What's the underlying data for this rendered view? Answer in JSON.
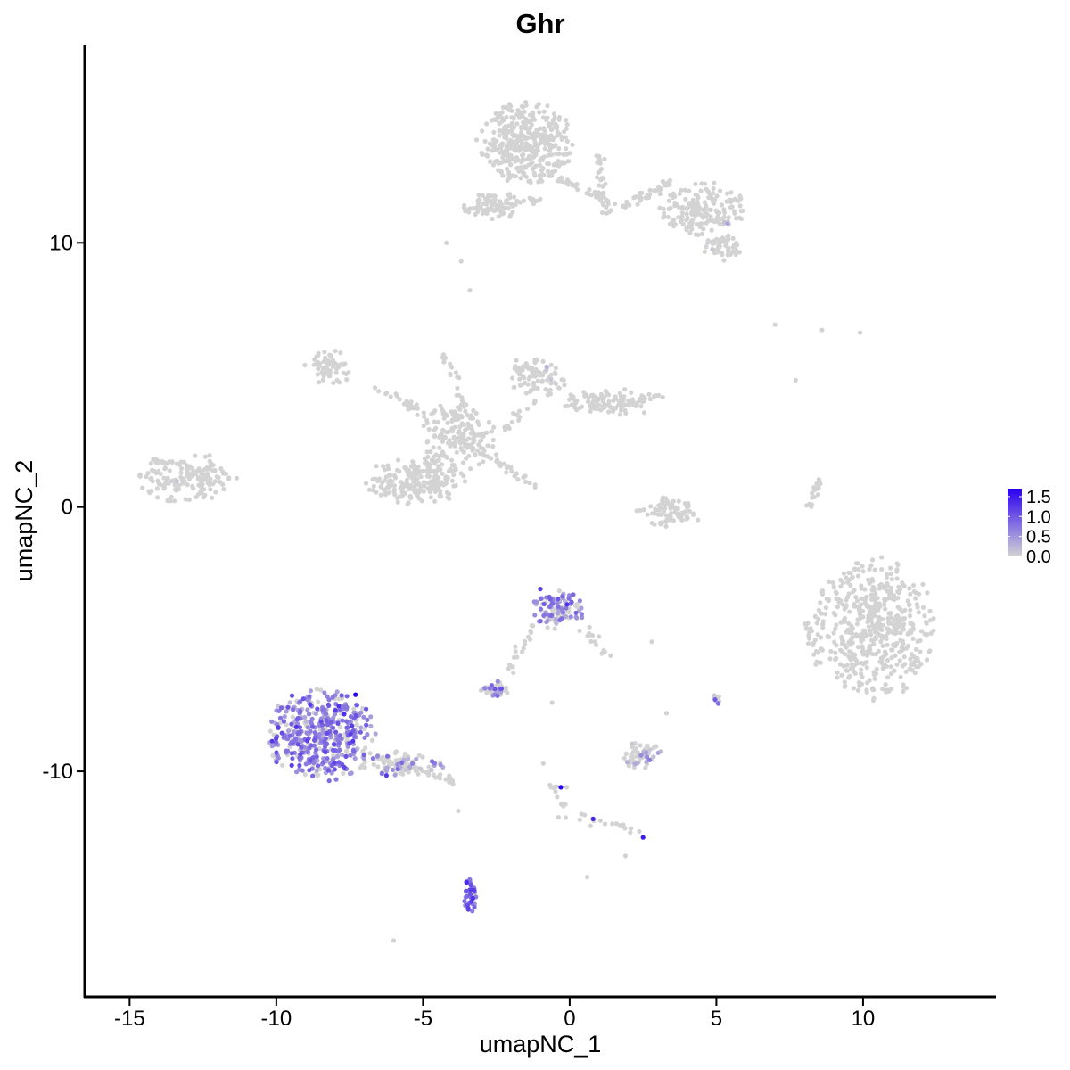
{
  "chart_data": {
    "type": "scatter",
    "title": "Ghr",
    "xlabel": "umapNC_1",
    "ylabel": "umapNC_2",
    "xlim": [
      -16.5,
      14.5
    ],
    "ylim": [
      -18.5,
      17.5
    ],
    "xticks": [
      -15,
      -10,
      -5,
      0,
      5,
      10
    ],
    "yticks": [
      -10,
      0,
      10
    ],
    "xtick_labels": [
      "-15",
      "-10",
      "-5",
      "0",
      "5",
      "10"
    ],
    "ytick_labels": [
      "-10",
      "0",
      "10"
    ],
    "grid": false,
    "point_color_low": "#d3d3d3",
    "point_color_high": "#2a00f0",
    "color_scale": {
      "min": 0.0,
      "max": 1.7,
      "ticks": [
        0.0,
        0.5,
        1.0,
        1.5
      ],
      "tick_labels": [
        "0.0",
        "0.5",
        "1.0",
        "1.5"
      ],
      "placement": "right"
    },
    "clusters": [
      {
        "cx": -1.5,
        "cy": 13.8,
        "rx": 1.6,
        "ry": 1.5,
        "n": 380,
        "expr": 0.0,
        "frac": 0.0
      },
      {
        "cx": 4.5,
        "cy": 11.3,
        "rx": 1.4,
        "ry": 1.0,
        "n": 180,
        "expr": 0.0,
        "frac": 0.02
      },
      {
        "cx": 5.2,
        "cy": 9.8,
        "rx": 0.6,
        "ry": 0.5,
        "n": 50,
        "expr": 0.0,
        "frac": 0.04
      },
      {
        "cx": -2.6,
        "cy": 11.4,
        "rx": 1.1,
        "ry": 0.5,
        "n": 90,
        "expr": 0.0,
        "frac": 0.0
      },
      {
        "cx": -8.2,
        "cy": 5.3,
        "rx": 0.9,
        "ry": 0.6,
        "n": 60,
        "expr": 0.0,
        "frac": 0.03
      },
      {
        "cx": -3.8,
        "cy": 2.7,
        "rx": 1.2,
        "ry": 1.3,
        "n": 160,
        "expr": 0.0,
        "frac": 0.0
      },
      {
        "cx": -5.2,
        "cy": 1.0,
        "rx": 1.7,
        "ry": 0.9,
        "n": 220,
        "expr": 0.0,
        "frac": 0.0
      },
      {
        "cx": -1.2,
        "cy": 5.0,
        "rx": 1.0,
        "ry": 0.7,
        "n": 80,
        "expr": 0.0,
        "frac": 0.02
      },
      {
        "cx": 1.5,
        "cy": 4.0,
        "rx": 1.7,
        "ry": 0.5,
        "n": 110,
        "expr": 0.0,
        "frac": 0.0
      },
      {
        "cx": -13.0,
        "cy": 1.1,
        "rx": 1.7,
        "ry": 0.9,
        "n": 170,
        "expr": 0.0,
        "frac": 0.02
      },
      {
        "cx": 3.4,
        "cy": -0.2,
        "rx": 1.1,
        "ry": 0.6,
        "n": 80,
        "expr": 0.0,
        "frac": 0.0
      },
      {
        "cx": 10.4,
        "cy": -4.6,
        "rx": 2.0,
        "ry": 2.6,
        "n": 520,
        "expr": 0.0,
        "frac": 0.0
      },
      {
        "cx": -8.5,
        "cy": -8.6,
        "rx": 1.8,
        "ry": 1.7,
        "n": 460,
        "expr": 0.7,
        "frac": 0.75
      },
      {
        "cx": -5.8,
        "cy": -9.7,
        "rx": 1.5,
        "ry": 0.45,
        "n": 80,
        "expr": 0.55,
        "frac": 0.45
      },
      {
        "cx": -0.4,
        "cy": -3.9,
        "rx": 0.9,
        "ry": 0.7,
        "n": 110,
        "expr": 0.6,
        "frac": 0.6
      },
      {
        "cx": -2.5,
        "cy": -6.9,
        "rx": 0.5,
        "ry": 0.3,
        "n": 40,
        "expr": 0.55,
        "frac": 0.6
      },
      {
        "cx": 2.4,
        "cy": -9.4,
        "rx": 0.7,
        "ry": 0.5,
        "n": 60,
        "expr": 0.35,
        "frac": 0.3
      },
      {
        "cx": -3.4,
        "cy": -14.7,
        "rx": 0.25,
        "ry": 0.6,
        "n": 35,
        "expr": 0.8,
        "frac": 0.85
      },
      {
        "cx": 5.0,
        "cy": -7.3,
        "rx": 0.15,
        "ry": 0.2,
        "n": 12,
        "expr": 0.3,
        "frac": 0.3
      },
      {
        "cx": -1.3,
        "cy": 11.7,
        "rx": 0.3,
        "ry": 0.3,
        "n": 8,
        "expr": 0.0,
        "frac": 0.0
      }
    ],
    "streams": [
      {
        "from": [
          -1.0,
          12.7
        ],
        "to": [
          1.6,
          11.5
        ],
        "n": 40
      },
      {
        "from": [
          1.8,
          11.4
        ],
        "to": [
          3.5,
          12.3
        ],
        "n": 40
      },
      {
        "from": [
          1.0,
          13.3
        ],
        "to": [
          1.2,
          11.0
        ],
        "n": 30
      },
      {
        "from": [
          -3.0,
          2.2
        ],
        "to": [
          -1.2,
          0.7
        ],
        "n": 30
      },
      {
        "from": [
          -4.3,
          5.8
        ],
        "to": [
          -3.5,
          3.5
        ],
        "n": 20
      },
      {
        "from": [
          -2.2,
          3.0
        ],
        "to": [
          -0.2,
          4.8
        ],
        "n": 25
      },
      {
        "from": [
          -6.8,
          4.6
        ],
        "to": [
          -4.8,
          3.5
        ],
        "n": 25
      },
      {
        "from": [
          -6.8,
          -9.4
        ],
        "to": [
          -3.9,
          -10.4
        ],
        "n": 45
      },
      {
        "from": [
          -1.2,
          -4.4
        ],
        "to": [
          -2.1,
          -6.2
        ],
        "n": 18
      },
      {
        "from": [
          0.5,
          -4.6
        ],
        "to": [
          1.3,
          -5.6
        ],
        "n": 14
      },
      {
        "from": [
          -0.6,
          -10.2
        ],
        "to": [
          -0.2,
          -11.8
        ],
        "n": 14
      },
      {
        "from": [
          0.4,
          -11.7
        ],
        "to": [
          2.4,
          -12.3
        ],
        "n": 16
      },
      {
        "from": [
          8.1,
          -0.4
        ],
        "to": [
          8.5,
          1.2
        ],
        "n": 16
      },
      {
        "from": [
          8.0,
          -4.0
        ],
        "to": [
          8.5,
          -6.0
        ],
        "n": 18
      }
    ],
    "stray_points": [
      [
        7.0,
        6.9
      ],
      [
        8.6,
        6.7
      ],
      [
        9.9,
        6.6
      ],
      [
        7.7,
        4.8
      ],
      [
        -3.8,
        -11.5
      ],
      [
        -6.0,
        -16.4
      ],
      [
        0.6,
        -14.0
      ],
      [
        1.9,
        -13.2
      ],
      [
        -0.9,
        -9.7
      ],
      [
        -0.1,
        -10.6
      ],
      [
        -0.6,
        -7.4
      ],
      [
        2.8,
        -5.1
      ],
      [
        3.3,
        -7.8
      ],
      [
        -3.4,
        8.2
      ],
      [
        -3.7,
        9.3
      ],
      [
        -4.2,
        10.0
      ]
    ],
    "highlight_points": [
      {
        "x": -7.3,
        "y": -7.1,
        "v": 1.7
      },
      {
        "x": -0.3,
        "y": -10.6,
        "v": 1.7
      },
      {
        "x": 2.5,
        "y": -12.5,
        "v": 1.5
      },
      {
        "x": 0.8,
        "y": -11.8,
        "v": 1.4
      },
      {
        "x": -3.3,
        "y": -14.8,
        "v": 1.3
      },
      {
        "x": -1.0,
        "y": -3.1,
        "v": 1.2
      }
    ]
  }
}
